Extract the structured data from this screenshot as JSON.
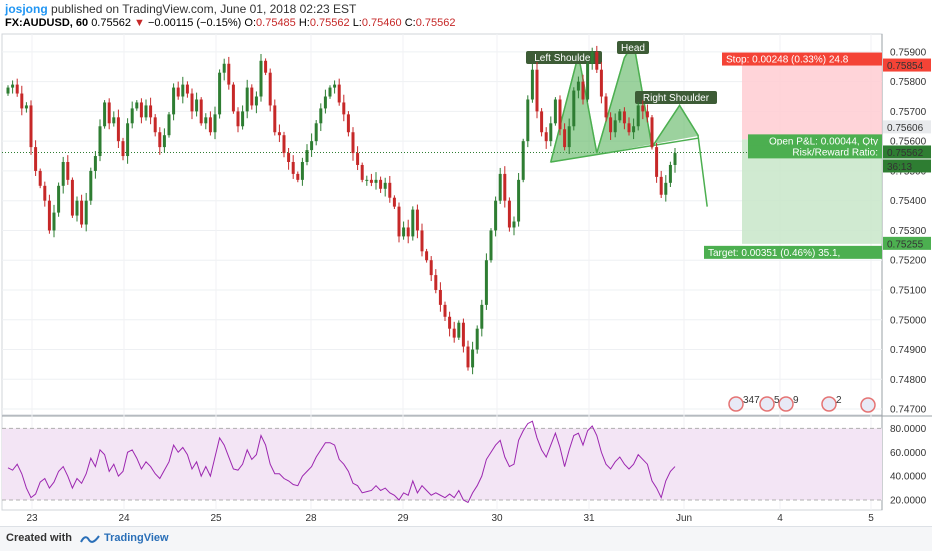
{
  "header": {
    "author": "josjong",
    "published": "published on TradingView.com, June 01, 2018 02:23 EST",
    "symbol": "FX:AUDUSD, 60",
    "last": "0.75562",
    "change": "−0.00115 (−0.15%)",
    "o_label": "O:",
    "o_value": "0.75485",
    "h_label": "H:",
    "h_value": "0.75562",
    "l_label": "L:",
    "l_value": "0.75460",
    "c_label": "C:",
    "c_value": "0.75562"
  },
  "chart_data": {
    "type": "candlestick",
    "symbol": "FX:AUDUSD",
    "interval": "60",
    "ylim": [
      0.7468,
      0.7596
    ],
    "x_labels": [
      "23",
      "24",
      "25",
      "28",
      "29",
      "30",
      "31",
      "Jun",
      "4",
      "5"
    ],
    "price_ticks": [
      "0.75900",
      "0.75800",
      "0.75700",
      "0.75600",
      "0.75500",
      "0.75400",
      "0.75300",
      "0.75200",
      "0.75100",
      "0.75000",
      "0.74900",
      "0.74800",
      "0.74700"
    ],
    "price_ticks_num": [
      0.759,
      0.758,
      0.757,
      0.756,
      0.755,
      0.754,
      0.753,
      0.752,
      0.751,
      0.75,
      0.749,
      0.748,
      0.747
    ],
    "last_price": 0.75562,
    "last_price_label": "0.75562",
    "countdown_label": "36:13",
    "open_price": 0.75606,
    "open_price_label": "0.75606",
    "stop_price": 0.75854,
    "stop_price_label": "0.75854",
    "target_price": 0.75255,
    "target_price_label": "0.75255",
    "closes": [
      0.7578,
      0.7579,
      0.7576,
      0.7571,
      0.7572,
      0.7558,
      0.755,
      0.7545,
      0.754,
      0.753,
      0.7536,
      0.7545,
      0.7553,
      0.7547,
      0.7535,
      0.754,
      0.7532,
      0.754,
      0.755,
      0.7555,
      0.7565,
      0.7573,
      0.7566,
      0.7568,
      0.756,
      0.7555,
      0.7566,
      0.7571,
      0.7573,
      0.7568,
      0.7572,
      0.7568,
      0.7563,
      0.7558,
      0.7562,
      0.7569,
      0.7578,
      0.7575,
      0.7579,
      0.7576,
      0.757,
      0.7574,
      0.7566,
      0.7568,
      0.7563,
      0.7569,
      0.7583,
      0.7586,
      0.7579,
      0.757,
      0.7565,
      0.757,
      0.7578,
      0.7572,
      0.7575,
      0.7587,
      0.7583,
      0.7572,
      0.7563,
      0.7562,
      0.7556,
      0.7553,
      0.7549,
      0.7547,
      0.7553,
      0.7557,
      0.756,
      0.7566,
      0.7571,
      0.7575,
      0.7578,
      0.7579,
      0.7573,
      0.7569,
      0.7563,
      0.7556,
      0.7552,
      0.7547,
      0.7547,
      0.7546,
      0.7547,
      0.7544,
      0.7546,
      0.7541,
      0.7538,
      0.7528,
      0.7531,
      0.7528,
      0.7537,
      0.753,
      0.7523,
      0.752,
      0.7515,
      0.751,
      0.7505,
      0.7501,
      0.7497,
      0.7494,
      0.7499,
      0.7491,
      0.7484,
      0.749,
      0.7497,
      0.7505,
      0.752,
      0.753,
      0.754,
      0.7549,
      0.754,
      0.7531,
      0.7533,
      0.7547,
      0.756,
      0.7574,
      0.7584,
      0.757,
      0.7563,
      0.756,
      0.7566,
      0.7574,
      0.7564,
      0.7558,
      0.7565,
      0.7577,
      0.758,
      0.7574,
      0.7586,
      0.759,
      0.7584,
      0.7575,
      0.7568,
      0.7563,
      0.7567,
      0.757,
      0.7566,
      0.7563,
      0.7565,
      0.7572,
      0.757,
      0.7568,
      0.7558,
      0.7548,
      0.7542,
      0.7546,
      0.7552,
      0.7556
    ],
    "rsi": {
      "ylim": [
        15,
        87
      ],
      "ticks": [
        "80.0000",
        "60.0000",
        "40.0000",
        "20.0000"
      ],
      "ticks_num": [
        80,
        60,
        40,
        20
      ],
      "band_upper": 80,
      "band_lower": 20,
      "values": [
        47,
        45,
        50,
        42,
        30,
        22,
        25,
        35,
        38,
        30,
        35,
        44,
        48,
        40,
        30,
        38,
        34,
        42,
        55,
        48,
        62,
        58,
        44,
        50,
        40,
        44,
        60,
        62,
        55,
        46,
        52,
        48,
        42,
        38,
        45,
        52,
        66,
        60,
        64,
        58,
        46,
        52,
        40,
        48,
        40,
        56,
        72,
        66,
        56,
        46,
        45,
        50,
        62,
        54,
        58,
        74,
        66,
        50,
        42,
        42,
        38,
        36,
        33,
        32,
        40,
        44,
        48,
        56,
        62,
        68,
        68,
        66,
        54,
        50,
        44,
        34,
        32,
        26,
        27,
        28,
        32,
        28,
        30,
        26,
        24,
        20,
        26,
        24,
        36,
        26,
        32,
        28,
        24,
        26,
        24,
        22,
        25,
        22,
        28,
        20,
        18,
        26,
        32,
        40,
        54,
        60,
        66,
        70,
        56,
        48,
        50,
        70,
        78,
        84,
        86,
        72,
        62,
        56,
        66,
        76,
        64,
        48,
        62,
        74,
        76,
        66,
        78,
        82,
        74,
        60,
        50,
        46,
        52,
        56,
        50,
        46,
        50,
        58,
        54,
        50,
        36,
        30,
        22,
        36,
        44,
        48
      ]
    },
    "pattern": {
      "left_shoulder_label": "Left Shoulder",
      "head_label": "Head",
      "right_shoulder_label": "Right Shoulder",
      "color": "#4caf50"
    },
    "position": {
      "stop_label": "Stop: 0.00248 (0.33%) 24.8",
      "open_pl_label": "Open P&L: 0.00044, Qty",
      "rr_label": "Risk/Reward Ratio: ",
      "target_label": "Target: 0.00351 (0.46%) 35.1,",
      "stop_color": "#f44336",
      "target_color": "#4caf50"
    },
    "events": [
      "347",
      "5",
      "9",
      "2"
    ],
    "colors": {
      "up": "#2e7d32",
      "down": "#c62828",
      "rsi": "#9c27b0",
      "rsi_band": "#f3e5f5"
    }
  },
  "footer": {
    "created": "Created with",
    "brand": "TradingView"
  }
}
